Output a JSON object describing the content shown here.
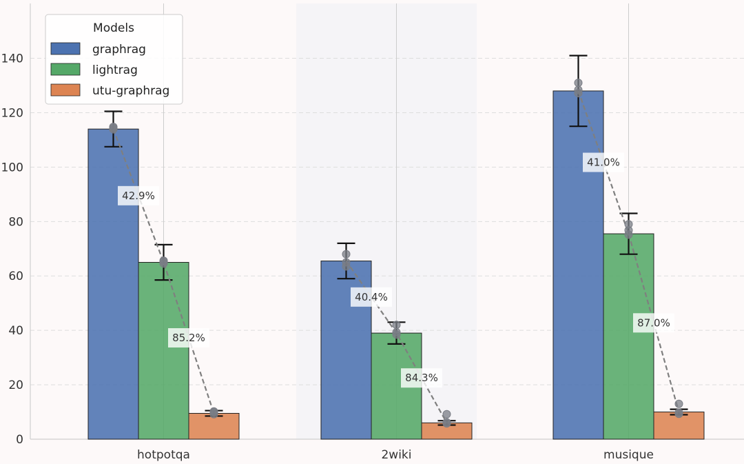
{
  "chart_data": {
    "type": "bar",
    "categories": [
      "hotpotqa",
      "2wiki",
      "musique"
    ],
    "series": [
      {
        "name": "graphrag",
        "color": "#4c72b0",
        "values": [
          114,
          65.5,
          128
        ],
        "errors": [
          6.5,
          6.5,
          13
        ]
      },
      {
        "name": "lightrag",
        "color": "#55a868",
        "values": [
          65,
          39,
          75.5
        ],
        "errors": [
          6.5,
          4,
          7.5
        ]
      },
      {
        "name": "utu-graphrag",
        "color": "#dd8452",
        "values": [
          9.5,
          6,
          10
        ],
        "errors": [
          1,
          0.8,
          1
        ]
      }
    ],
    "points": [
      [
        [
          114.8,
          113.9,
          114.4
        ],
        [
          64.6,
          65.3,
          65.6
        ],
        [
          9.2,
          10.2,
          9.9
        ]
      ],
      [
        [
          68.0,
          65.0,
          63.5
        ],
        [
          42.0,
          38.5,
          39.3
        ],
        [
          9.2,
          5.8,
          6.2
        ]
      ],
      [
        [
          131.0,
          128.4,
          127.2
        ],
        [
          79.0,
          75.2,
          76.8
        ],
        [
          13.0,
          9.3,
          9.8
        ]
      ]
    ],
    "reductions": [
      {
        "category": "hotpotqa",
        "labels": [
          "42.9%",
          "85.2%"
        ]
      },
      {
        "category": "2wiki",
        "labels": [
          "40.4%",
          "84.3%"
        ]
      },
      {
        "category": "musique",
        "labels": [
          "41.0%",
          "87.0%"
        ]
      }
    ],
    "ylim": [
      0,
      155
    ],
    "yticks": [
      0,
      20,
      40,
      60,
      80,
      100,
      120,
      140
    ],
    "legend": {
      "title": "Models",
      "position": "top-left"
    },
    "grid": true,
    "title": "",
    "xlabel": "",
    "ylabel": ""
  }
}
